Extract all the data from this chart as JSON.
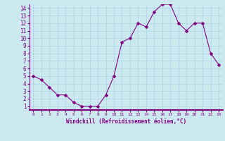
{
  "x": [
    0,
    1,
    2,
    3,
    4,
    5,
    6,
    7,
    8,
    9,
    10,
    11,
    12,
    13,
    14,
    15,
    16,
    17,
    18,
    19,
    20,
    21,
    22,
    23
  ],
  "y": [
    5.0,
    4.5,
    3.5,
    2.5,
    2.5,
    1.5,
    1.0,
    1.0,
    1.0,
    2.5,
    5.0,
    9.5,
    10.0,
    12.0,
    11.5,
    13.5,
    14.5,
    14.5,
    12.0,
    11.0,
    12.0,
    12.0,
    8.0,
    6.5
  ],
  "line_color": "#800080",
  "marker": "D",
  "marker_size": 2.5,
  "marker_color": "#800080",
  "bg_color": "#cde9f0",
  "grid_color": "#b0d8e8",
  "xlabel": "Windchill (Refroidissement éolien,°C)",
  "xlabel_color": "#800080",
  "tick_color": "#800080",
  "xlim": [
    -0.5,
    23.5
  ],
  "ylim": [
    0.5,
    14.5
  ],
  "yticks": [
    1,
    2,
    3,
    4,
    5,
    6,
    7,
    8,
    9,
    10,
    11,
    12,
    13,
    14
  ],
  "xticks": [
    0,
    1,
    2,
    3,
    4,
    5,
    6,
    7,
    8,
    9,
    10,
    11,
    12,
    13,
    14,
    15,
    16,
    17,
    18,
    19,
    20,
    21,
    22,
    23
  ],
  "spine_color": "#800080",
  "fig_bg": "#cde9f0"
}
